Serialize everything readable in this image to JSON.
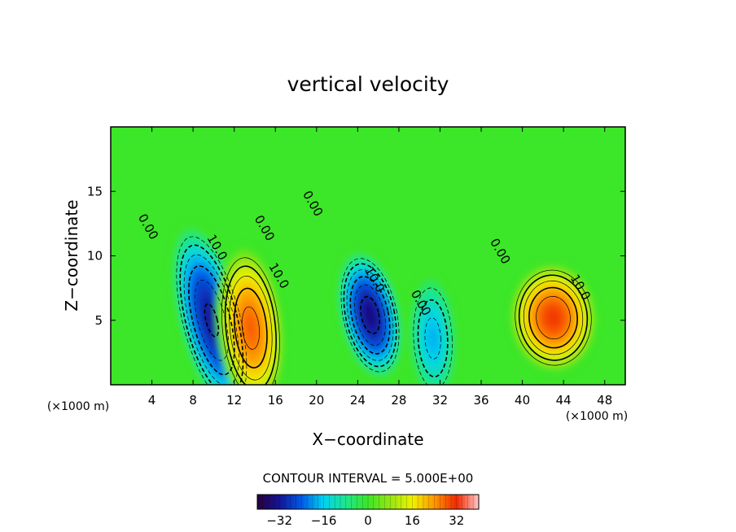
{
  "chart_data": {
    "type": "heatmap",
    "title": "vertical velocity",
    "xlabel": "X−coordinate",
    "ylabel": "Z−coordinate",
    "x_unit": "(×1000 m)",
    "y_unit": "(×1000 m)",
    "xlim": [
      0,
      50
    ],
    "ylim": [
      0,
      20
    ],
    "x_ticks": [
      4,
      8,
      12,
      16,
      20,
      24,
      28,
      32,
      36,
      40,
      44,
      48
    ],
    "y_ticks": [
      5,
      10,
      15
    ],
    "contour_interval_label": "CONTOUR INTERVAL = 5.000E+00",
    "colorbar": {
      "range": [
        -40,
        40
      ],
      "ticks": [
        -32,
        -16,
        0,
        16,
        32
      ],
      "tick_labels": [
        "−32",
        "−16",
        "0",
        "16",
        "32"
      ]
    },
    "features": [
      {
        "kind": "downdraft",
        "x": 9.8,
        "z": 5.0,
        "peak": -31,
        "sx": 1.5,
        "sz": 3.6,
        "tilt": 0.55
      },
      {
        "kind": "updraft",
        "x": 13.6,
        "z": 4.4,
        "peak": 27,
        "sx": 1.5,
        "sz": 3.0,
        "tilt": 0.2
      },
      {
        "kind": "downdraft",
        "x": 25.2,
        "z": 5.4,
        "peak": -33,
        "sx": 1.4,
        "sz": 2.4,
        "tilt": 0.45
      },
      {
        "kind": "downdraft",
        "x": 31.3,
        "z": 3.6,
        "peak": -17,
        "sx": 1.1,
        "sz": 2.3,
        "tilt": 0.1
      },
      {
        "kind": "updraft",
        "x": 43.0,
        "z": 5.2,
        "peak": 30,
        "sx": 2.0,
        "sz": 2.0,
        "tilt": 0.15
      }
    ],
    "contour_labels": [
      {
        "text": "0.00",
        "x": 3.3,
        "z": 12.1
      },
      {
        "text": "10.0",
        "x": 10.0,
        "z": 10.5
      },
      {
        "text": "0.00",
        "x": 14.6,
        "z": 12.0
      },
      {
        "text": "10.0",
        "x": 16.0,
        "z": 8.3
      },
      {
        "text": "0.00",
        "x": 19.3,
        "z": 13.9
      },
      {
        "text": "10.0",
        "x": 25.3,
        "z": 8.0
      },
      {
        "text": "0.00",
        "x": 29.8,
        "z": 6.2
      },
      {
        "text": "0.00",
        "x": 37.5,
        "z": 10.2
      },
      {
        "text": "10.0",
        "x": 45.3,
        "z": 7.4
      }
    ]
  }
}
